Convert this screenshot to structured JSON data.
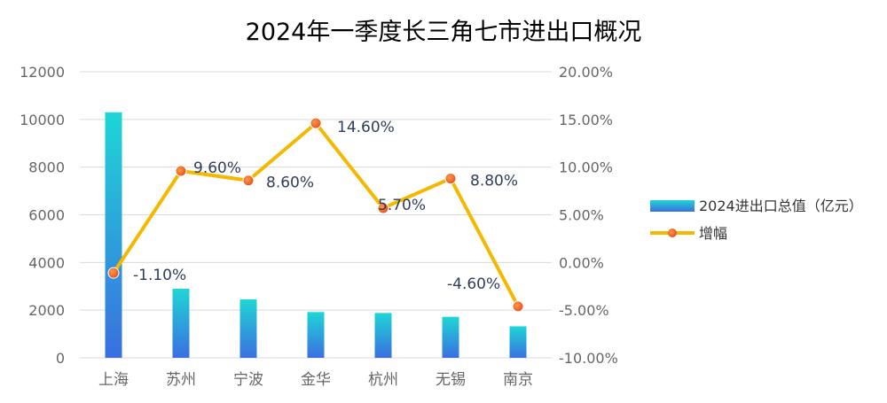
{
  "chart_data": {
    "type": "bar+line",
    "title": "2024年一季度长三角七市进出口概况",
    "categories": [
      "上海",
      "苏州",
      "宁波",
      "金华",
      "杭州",
      "无锡",
      "南京"
    ],
    "series": [
      {
        "name": "2024进出口总值（亿元）",
        "type": "bar",
        "axis": "left",
        "values": [
          10300,
          2900,
          2450,
          1920,
          1880,
          1720,
          1320
        ]
      },
      {
        "name": "增幅",
        "type": "line",
        "axis": "right",
        "values": [
          -1.1,
          9.6,
          8.6,
          14.6,
          5.7,
          8.8,
          -4.6
        ],
        "labels": [
          "-1.10%",
          "9.60%",
          "8.60%",
          "14.60%",
          "5.70%",
          "8.80%",
          "-4.60%"
        ]
      }
    ],
    "y_left": {
      "min": 0,
      "max": 12000,
      "ticks": [
        "0",
        "2000",
        "4000",
        "6000",
        "8000",
        "10000",
        "12000"
      ]
    },
    "y_right": {
      "min": -10,
      "max": 20,
      "ticks": [
        "-10.00%",
        "-5.00%",
        "0.00%",
        "5.00%",
        "10.00%",
        "15.00%",
        "20.00%"
      ]
    },
    "grid": true,
    "legend_position": "right",
    "colors": {
      "bar_top": "#1fd6d6",
      "bar_bottom": "#3a6fe0",
      "line": "#f5b800",
      "marker_fill": "#f4602a",
      "label": "#2f3e5a",
      "tick": "#666666",
      "grid": "#d9d9d9",
      "title": "#000000"
    }
  }
}
